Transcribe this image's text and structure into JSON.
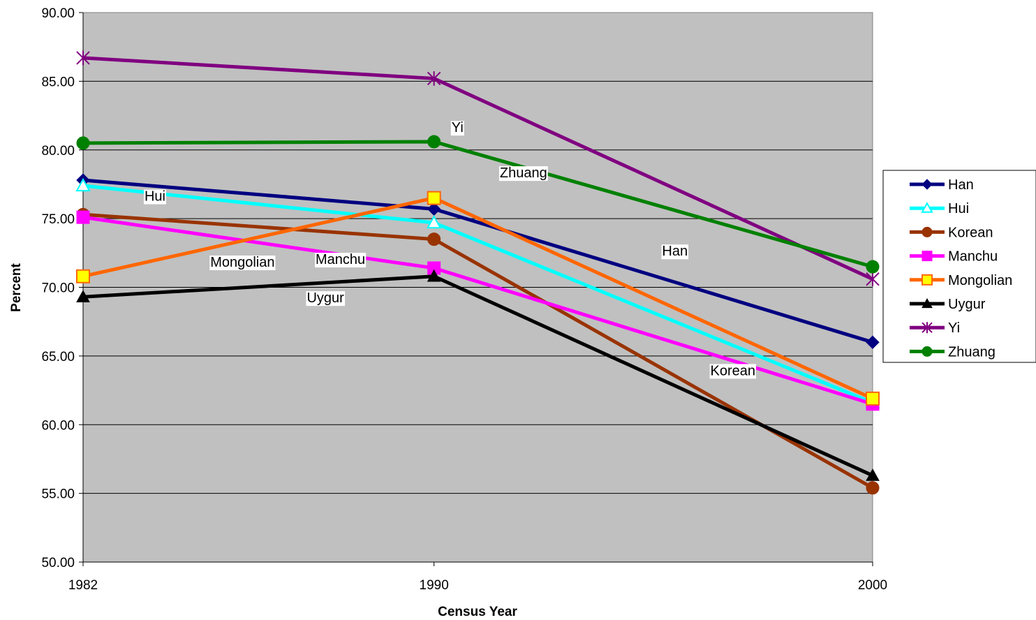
{
  "chart_data": {
    "type": "line",
    "title": "",
    "xlabel": "Census Year",
    "ylabel": "Percent",
    "ylim": [
      50,
      90
    ],
    "yticks": [
      "50.00",
      "55.00",
      "60.00",
      "65.00",
      "70.00",
      "75.00",
      "80.00",
      "85.00",
      "90.00"
    ],
    "ytick_values": [
      50,
      55,
      60,
      65,
      70,
      75,
      80,
      85,
      90
    ],
    "x": [
      "1982",
      "1990",
      "2000"
    ],
    "grid": true,
    "legend_position": "right",
    "plot_background": "#c0c0c0",
    "series": [
      {
        "name": "Han",
        "values": [
          77.8,
          75.7,
          66.0
        ],
        "color": "#000080",
        "marker": "diamond"
      },
      {
        "name": "Hui",
        "values": [
          77.4,
          74.7,
          61.6
        ],
        "color": "#00ffff",
        "marker": "triangle-open"
      },
      {
        "name": "Korean",
        "values": [
          75.3,
          73.5,
          55.4
        ],
        "color": "#993300",
        "marker": "circle"
      },
      {
        "name": "Manchu",
        "values": [
          75.1,
          71.4,
          61.5
        ],
        "color": "#ff00ff",
        "marker": "square"
      },
      {
        "name": "Mongolian",
        "values": [
          70.8,
          76.5,
          61.9
        ],
        "color": "#ff6600",
        "marker": "square-yellow"
      },
      {
        "name": "Uygur",
        "values": [
          69.3,
          70.8,
          56.3
        ],
        "color": "#000000",
        "marker": "triangle"
      },
      {
        "name": "Yi",
        "values": [
          86.7,
          85.2,
          70.6
        ],
        "color": "#800080",
        "marker": "star"
      },
      {
        "name": "Zhuang",
        "values": [
          80.5,
          80.6,
          71.5
        ],
        "color": "#008000",
        "marker": "circle"
      }
    ],
    "annotations": [
      {
        "text": "Yi",
        "x": 1990.4,
        "y": 81.3
      },
      {
        "text": "Zhuang",
        "x": 1991.5,
        "y": 78.0
      },
      {
        "text": "Hui",
        "x": 1983.4,
        "y": 76.3
      },
      {
        "text": "Han",
        "x": 1995.2,
        "y": 72.3
      },
      {
        "text": "Mongolian",
        "x": 1984.9,
        "y": 71.5
      },
      {
        "text": "Manchu",
        "x": 1987.3,
        "y": 71.7
      },
      {
        "text": "Uygur",
        "x": 1987.1,
        "y": 68.9
      },
      {
        "text": "Korean",
        "x": 1996.3,
        "y": 63.6
      }
    ]
  }
}
